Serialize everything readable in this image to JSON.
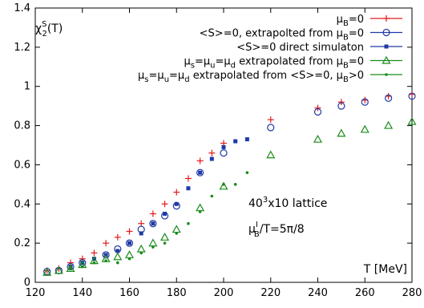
{
  "chart_data": {
    "type": "scatter",
    "title": "",
    "xlabel": "T [MeV]",
    "ylabel": "",
    "xlim": [
      120,
      280
    ],
    "ylim": [
      0,
      1.4
    ],
    "x_ticks": [
      120,
      140,
      160,
      180,
      200,
      220,
      240,
      260,
      280
    ],
    "y_ticks": [
      0,
      0.2,
      0.4,
      0.6,
      0.8,
      1,
      1.2,
      1.4
    ],
    "y_tick_labels": [
      "0",
      "0.2",
      "0.4",
      "0.6",
      "0.8",
      "1",
      "1.2",
      "1.4"
    ],
    "grid": false,
    "legend_position": "top-right",
    "annotations": {
      "quantity": {
        "base": "χ",
        "sup": "S",
        "sub": "2",
        "tail": "(T)"
      },
      "lattice": {
        "pre": "40",
        "sup": "3",
        "post": "x10 lattice"
      },
      "mu": {
        "base": "μ",
        "sup": "I",
        "sub": "B",
        "tail": "/T=5π/8"
      }
    },
    "series": [
      {
        "name": "μB=0",
        "legend": [
          {
            "t": "μ"
          },
          {
            "t": "B",
            "s": "sub"
          },
          {
            "t": "=0"
          }
        ],
        "marker": "plus",
        "color": "#e41a1c",
        "x": [
          125,
          130,
          135,
          140,
          145,
          150,
          155,
          160,
          165,
          170,
          175,
          180,
          185,
          190,
          195,
          200,
          220,
          240,
          250,
          260,
          270,
          280
        ],
        "y": [
          0.06,
          0.07,
          0.1,
          0.12,
          0.15,
          0.2,
          0.23,
          0.26,
          0.3,
          0.35,
          0.4,
          0.46,
          0.53,
          0.62,
          0.66,
          0.71,
          0.83,
          0.89,
          0.92,
          0.93,
          0.95,
          0.96
        ]
      },
      {
        "name": "<S>=0, extrapolted from μB=0",
        "legend": [
          {
            "t": "<S>=0, extrapolted from μ"
          },
          {
            "t": "B",
            "s": "sub"
          },
          {
            "t": "=0"
          }
        ],
        "marker": "circle",
        "color": "#1f3aa5",
        "x": [
          125,
          130,
          135,
          140,
          150,
          155,
          160,
          165,
          170,
          175,
          180,
          190,
          200,
          220,
          240,
          250,
          260,
          270,
          280
        ],
        "y": [
          0.055,
          0.06,
          0.08,
          0.1,
          0.14,
          0.17,
          0.2,
          0.27,
          0.3,
          0.34,
          0.39,
          0.56,
          0.66,
          0.79,
          0.87,
          0.9,
          0.92,
          0.94,
          0.95
        ]
      },
      {
        "name": "<S>=0 direct simulaton",
        "legend": [
          {
            "t": "<S>=0 direct simulaton"
          }
        ],
        "marker": "square",
        "color": "#1f3aa5",
        "x": [
          135,
          140,
          145,
          150,
          155,
          160,
          165,
          170,
          175,
          180,
          185,
          190,
          195,
          200,
          205,
          210
        ],
        "y": [
          0.08,
          0.1,
          0.12,
          0.14,
          0.16,
          0.2,
          0.25,
          0.3,
          0.35,
          0.4,
          0.48,
          0.56,
          0.63,
          0.69,
          0.72,
          0.73
        ]
      },
      {
        "name": "μs=μu=μd extrapolated from μB=0",
        "legend": [
          {
            "t": "μ"
          },
          {
            "t": "s",
            "s": "sub"
          },
          {
            "t": "=μ"
          },
          {
            "t": "u",
            "s": "sub"
          },
          {
            "t": "=μ"
          },
          {
            "t": "d",
            "s": "sub"
          },
          {
            "t": " extrapolated from μ"
          },
          {
            "t": "B",
            "s": "sub"
          },
          {
            "t": "=0"
          }
        ],
        "marker": "triangle",
        "color": "#1a8c1a",
        "x": [
          125,
          130,
          135,
          140,
          145,
          150,
          155,
          160,
          165,
          170,
          175,
          180,
          190,
          200,
          220,
          240,
          250,
          260,
          270,
          280
        ],
        "y": [
          0.05,
          0.06,
          0.07,
          0.09,
          0.11,
          0.12,
          0.13,
          0.14,
          0.17,
          0.2,
          0.23,
          0.27,
          0.38,
          0.49,
          0.65,
          0.73,
          0.76,
          0.78,
          0.8,
          0.82
        ]
      },
      {
        "name": "μs=μu=μd extrapolated from <S>=0, μB>0",
        "legend": [
          {
            "t": "μ"
          },
          {
            "t": "s",
            "s": "sub"
          },
          {
            "t": "=μ"
          },
          {
            "t": "u",
            "s": "sub"
          },
          {
            "t": "=μ"
          },
          {
            "t": "d",
            "s": "sub"
          },
          {
            "t": " extrapolated from <S>=0, μ"
          },
          {
            "t": "B",
            "s": "sub"
          },
          {
            "t": ">0"
          }
        ],
        "marker": "dot",
        "color": "#1a8c1a",
        "x": [
          135,
          140,
          145,
          150,
          155,
          160,
          165,
          170,
          175,
          180,
          185,
          190,
          195,
          200,
          205,
          210
        ],
        "y": [
          0.07,
          0.08,
          0.1,
          0.11,
          0.1,
          0.12,
          0.15,
          0.18,
          0.2,
          0.25,
          0.3,
          0.36,
          0.44,
          0.5,
          0.5,
          0.56
        ]
      }
    ]
  }
}
